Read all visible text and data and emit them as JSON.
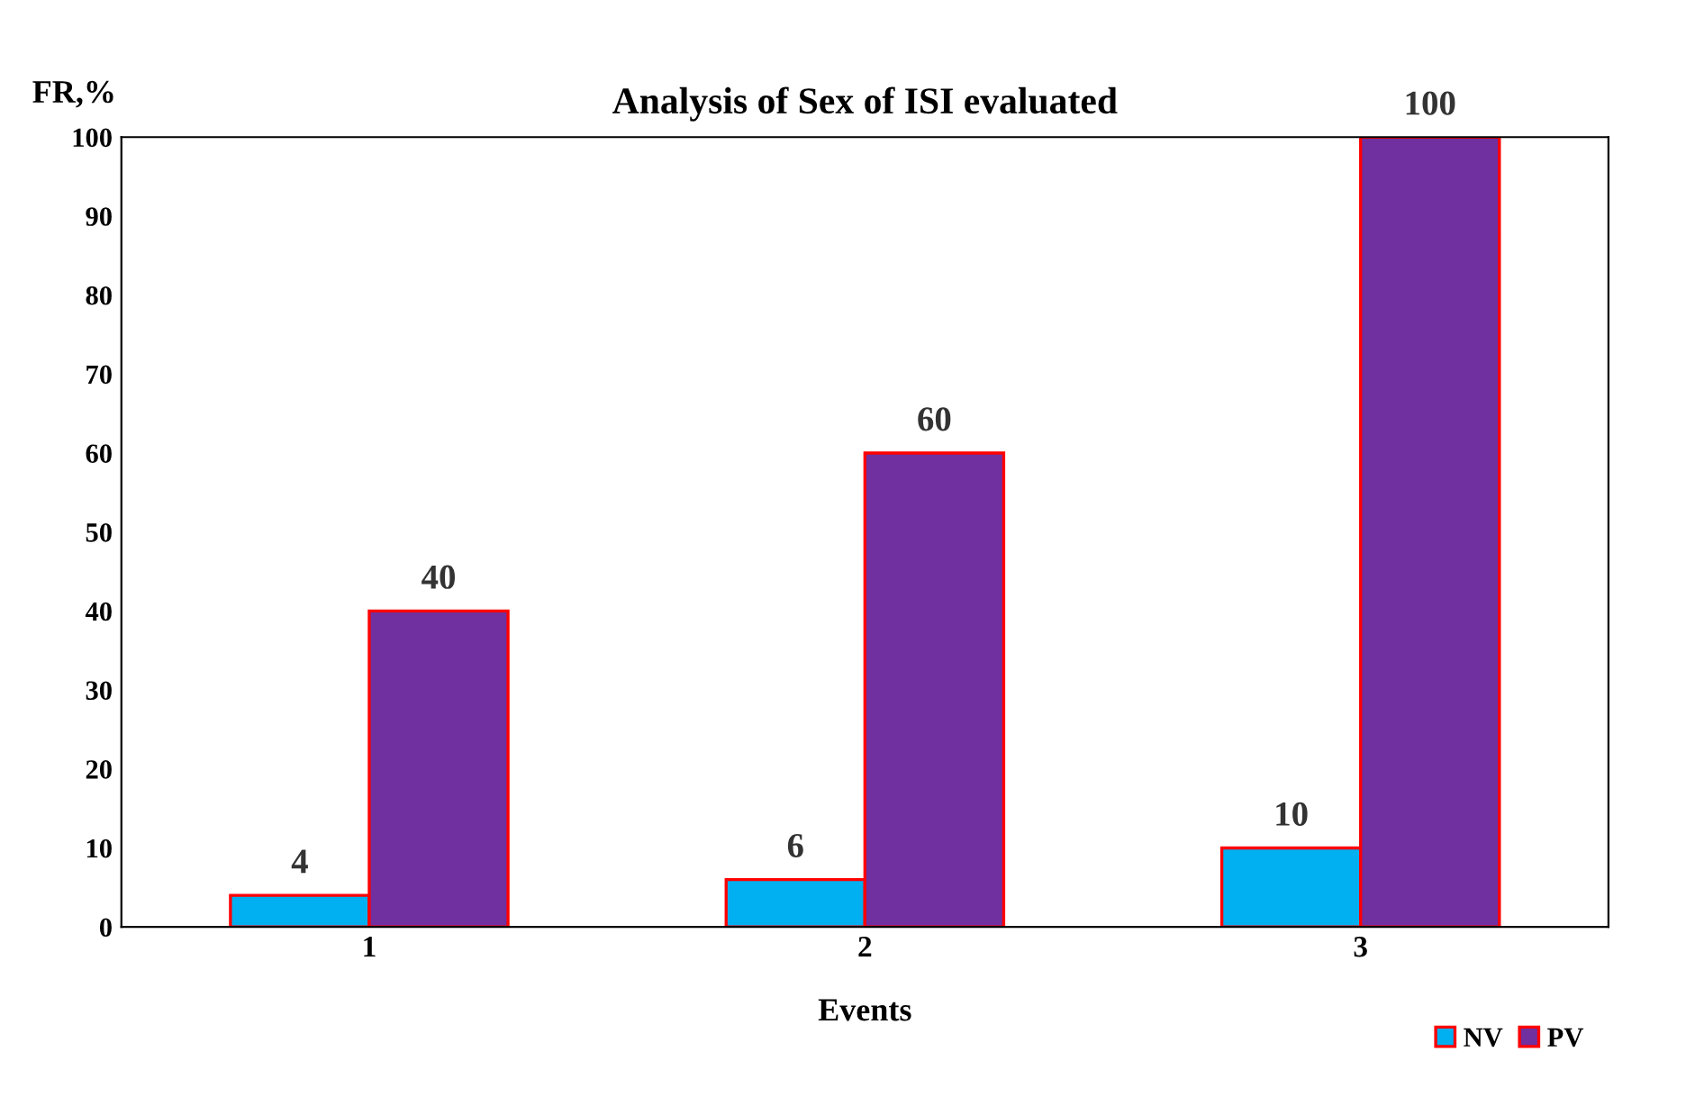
{
  "chart_data": {
    "type": "bar",
    "title": "Analysis of Sex of ISI evaluated",
    "xlabel": "Events",
    "ylabel": "FR,%",
    "categories": [
      "1",
      "2",
      "3"
    ],
    "series": [
      {
        "name": "NV",
        "color": "#00b0f0",
        "values": [
          4,
          6,
          10
        ]
      },
      {
        "name": "PV",
        "color": "#7030a0",
        "values": [
          40,
          60,
          100
        ]
      }
    ],
    "ylim": [
      0,
      100
    ],
    "yticks": [
      0,
      10,
      20,
      30,
      40,
      50,
      60,
      70,
      80,
      90,
      100
    ],
    "data_labels": true,
    "legend": "bottom right",
    "grid": false
  }
}
